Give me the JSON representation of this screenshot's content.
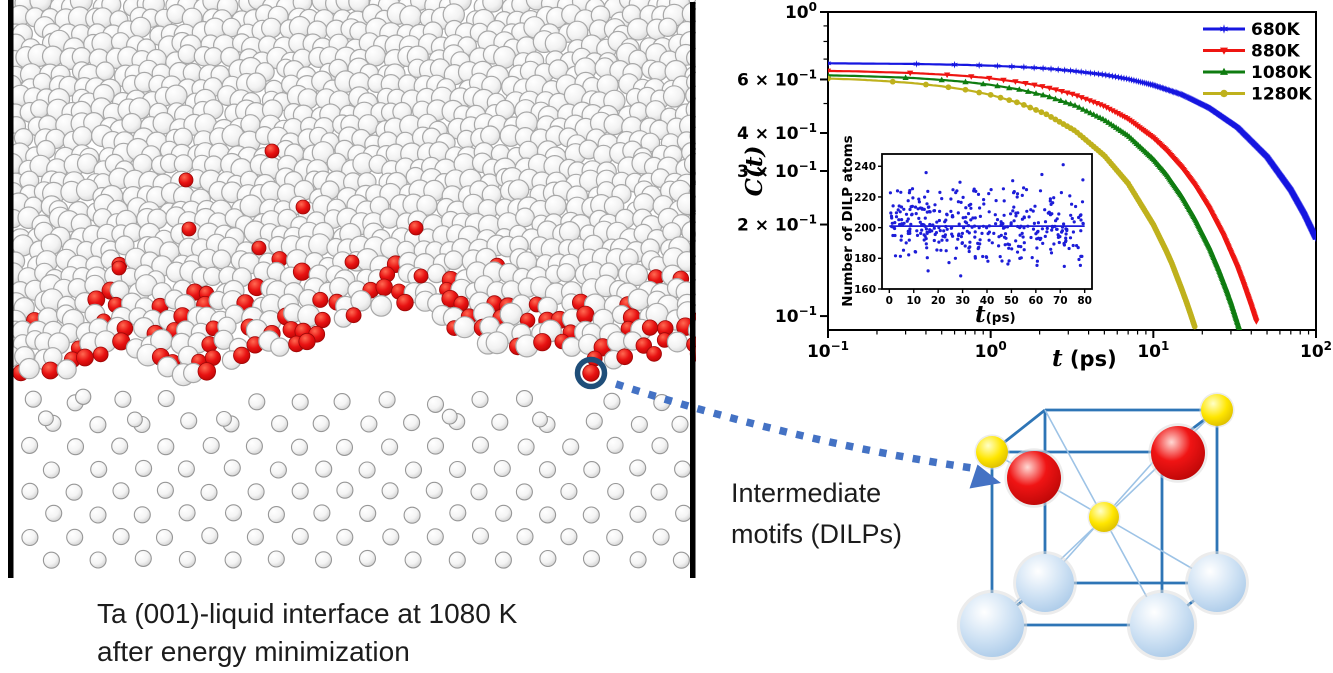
{
  "left_panel": {
    "caption_line1": "Ta (001)-liquid interface at 1080 K",
    "caption_line2": "after energy minimization",
    "border_color": "#000000",
    "liquid_atom_color": "#f3f3f3",
    "liquid_atom_edge": "#a8a8a8",
    "red_atom_color": "#e31212",
    "annotation_circle_color": "#1f4e79"
  },
  "arrow": {
    "color": "#4472c4",
    "style": "dashed"
  },
  "unit_cell": {
    "label_line1": "Intermediate",
    "label_line2": "motifs (DILPs)",
    "edge_color": "#2e75b6",
    "diagonal_color": "#9dc3e6",
    "corner_sphere_color": "#bdd7ee",
    "dilp_red_color": "#e8100c",
    "dilp_yellow_color": "#ffe100"
  },
  "chart_data": [
    {
      "type": "line",
      "xscale": "log",
      "yscale": "log",
      "xlim": [
        0.1,
        100
      ],
      "ylim": [
        0.09,
        1.0
      ],
      "grid": false,
      "ylabel": "C(t)",
      "xlabel_italic": "t",
      "xlabel_rest": " (ps)",
      "legend_position": "top-right-inside",
      "x_ticks": [
        {
          "v": 0.1,
          "base": "10",
          "exp": "−1"
        },
        {
          "v": 1,
          "base": "10",
          "exp": "0"
        },
        {
          "v": 10,
          "base": "10",
          "exp": "1"
        },
        {
          "v": 100,
          "base": "10",
          "exp": "2"
        }
      ],
      "x_minor": [
        0.2,
        0.3,
        0.4,
        0.5,
        0.6,
        0.7,
        0.8,
        0.9,
        2,
        3,
        4,
        5,
        6,
        7,
        8,
        9,
        20,
        30,
        40,
        50,
        60,
        70,
        80,
        90
      ],
      "y_ticks": [
        {
          "v": 1.0,
          "base": "10",
          "exp": "0"
        },
        {
          "v": 0.6,
          "base": "6 × 10",
          "exp": "−1"
        },
        {
          "v": 0.4,
          "base": "4 × 10",
          "exp": "−1"
        },
        {
          "v": 0.3,
          "base": "3 × 10",
          "exp": "−1"
        },
        {
          "v": 0.2,
          "base": "2 × 10",
          "exp": "−1"
        },
        {
          "v": 0.1,
          "base": "10",
          "exp": "−1"
        }
      ],
      "y_minor": [
        0.9,
        0.8,
        0.7,
        0.5
      ],
      "series": [
        {
          "name": "680K",
          "color": "#1616e0",
          "marker": "star",
          "marker_dt": 0.25,
          "points": [
            [
              0.1,
              0.678
            ],
            [
              0.15,
              0.677
            ],
            [
              0.22,
              0.676
            ],
            [
              0.33,
              0.675
            ],
            [
              0.5,
              0.672
            ],
            [
              0.7,
              0.67
            ],
            [
              1,
              0.666
            ],
            [
              1.5,
              0.66
            ],
            [
              2.2,
              0.652
            ],
            [
              3.3,
              0.639
            ],
            [
              5,
              0.622
            ],
            [
              7,
              0.602
            ],
            [
              10,
              0.575
            ],
            [
              15,
              0.535
            ],
            [
              22,
              0.484
            ],
            [
              33,
              0.417
            ],
            [
              50,
              0.334
            ],
            [
              70,
              0.26
            ],
            [
              85,
              0.216
            ],
            [
              100,
              0.18
            ]
          ]
        },
        {
          "name": "880K",
          "color": "#ee1511",
          "marker": "triangle-down",
          "marker_dt": 0.22,
          "points": [
            [
              0.1,
              0.64
            ],
            [
              0.15,
              0.638
            ],
            [
              0.22,
              0.634
            ],
            [
              0.33,
              0.63
            ],
            [
              0.5,
              0.623
            ],
            [
              0.7,
              0.616
            ],
            [
              1,
              0.605
            ],
            [
              1.5,
              0.588
            ],
            [
              2.2,
              0.566
            ],
            [
              3.3,
              0.534
            ],
            [
              5,
              0.49
            ],
            [
              7,
              0.445
            ],
            [
              10,
              0.386
            ],
            [
              12,
              0.352
            ],
            [
              15,
              0.308
            ],
            [
              18,
              0.27
            ],
            [
              22,
              0.227
            ],
            [
              27,
              0.184
            ],
            [
              33,
              0.144
            ],
            [
              36,
              0.127
            ],
            [
              40,
              0.108
            ],
            [
              43,
              0.096
            ]
          ]
        },
        {
          "name": "1080K",
          "color": "#0f7c10",
          "marker": "triangle-up",
          "marker_dt": 0.2,
          "points": [
            [
              0.1,
              0.619
            ],
            [
              0.15,
              0.616
            ],
            [
              0.22,
              0.612
            ],
            [
              0.33,
              0.607
            ],
            [
              0.5,
              0.598
            ],
            [
              0.7,
              0.589
            ],
            [
              1,
              0.576
            ],
            [
              1.5,
              0.556
            ],
            [
              2.2,
              0.53
            ],
            [
              3.3,
              0.493
            ],
            [
              5,
              0.442
            ],
            [
              7,
              0.392
            ],
            [
              10,
              0.328
            ],
            [
              12,
              0.293
            ],
            [
              15,
              0.247
            ],
            [
              18,
              0.209
            ],
            [
              22,
              0.169
            ],
            [
              25,
              0.144
            ],
            [
              28,
              0.123
            ],
            [
              30,
              0.111
            ],
            [
              34,
              0.09
            ]
          ]
        },
        {
          "name": "1280K",
          "color": "#bfb11d",
          "marker": "circle",
          "marker_dt": 0.15,
          "points": [
            [
              0.1,
              0.604
            ],
            [
              0.15,
              0.6
            ],
            [
              0.22,
              0.593
            ],
            [
              0.33,
              0.584
            ],
            [
              0.5,
              0.57
            ],
            [
              0.7,
              0.555
            ],
            [
              1,
              0.534
            ],
            [
              1.5,
              0.502
            ],
            [
              2.2,
              0.461
            ],
            [
              3.3,
              0.407
            ],
            [
              5,
              0.337
            ],
            [
              7,
              0.273
            ],
            [
              10,
              0.2
            ],
            [
              12,
              0.164
            ],
            [
              13,
              0.149
            ],
            [
              15,
              0.122
            ],
            [
              16,
              0.111
            ],
            [
              17,
              0.101
            ],
            [
              18,
              0.092
            ]
          ]
        }
      ]
    },
    {
      "type": "scatter",
      "inset": true,
      "ylabel": "Number of DILP atoms",
      "xlabel_italic": "t",
      "xlabel_rest": "(ps)",
      "xlim": [
        -3,
        83
      ],
      "ylim": [
        160,
        248
      ],
      "x_ticks": [
        0,
        10,
        20,
        30,
        40,
        50,
        60,
        70,
        80
      ],
      "y_ticks": [
        160,
        180,
        200,
        220,
        240
      ],
      "n_points": 380,
      "y_mean": 201,
      "y_std": 13,
      "y_clip": [
        163,
        246
      ],
      "x_range": [
        0.3,
        79.7
      ],
      "mean_line": 201,
      "point_color": "#1d1dd8",
      "line_color": "#1d1dd8"
    }
  ]
}
